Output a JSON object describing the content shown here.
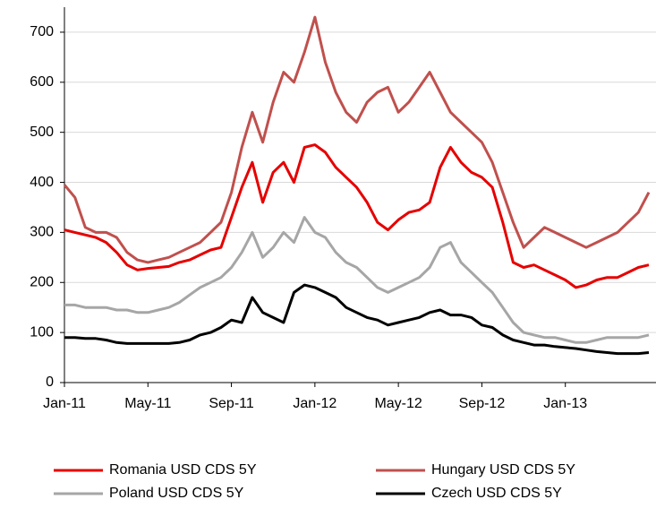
{
  "chart_data": {
    "type": "line",
    "categories": [
      "Jan-11",
      null,
      null,
      null,
      null,
      null,
      null,
      null,
      "May-11",
      null,
      null,
      null,
      null,
      null,
      null,
      null,
      "Sep-11",
      null,
      null,
      null,
      null,
      null,
      null,
      null,
      "Jan-12",
      null,
      null,
      null,
      null,
      null,
      null,
      null,
      "May-12",
      null,
      null,
      null,
      null,
      null,
      null,
      null,
      "Sep-12",
      null,
      null,
      null,
      null,
      null,
      null,
      null,
      "Jan-13",
      null,
      null,
      null,
      null,
      null,
      null,
      null,
      null
    ],
    "series": [
      {
        "name": "Romania USD CDS 5Y",
        "color": "#e60000",
        "values": [
          305,
          300,
          295,
          290,
          280,
          260,
          235,
          225,
          228,
          230,
          232,
          240,
          245,
          255,
          265,
          270,
          330,
          390,
          440,
          360,
          420,
          440,
          400,
          470,
          475,
          460,
          430,
          410,
          390,
          360,
          320,
          305,
          325,
          340,
          345,
          360,
          430,
          470,
          440,
          420,
          410,
          390,
          320,
          240,
          230,
          235,
          225,
          215,
          205,
          190,
          195,
          205,
          210,
          210,
          220,
          230,
          235
        ]
      },
      {
        "name": "Hungary USD CDS 5Y",
        "color": "#c0504d",
        "values": [
          395,
          370,
          310,
          300,
          300,
          290,
          260,
          245,
          240,
          245,
          250,
          260,
          270,
          280,
          300,
          320,
          380,
          470,
          540,
          480,
          560,
          620,
          600,
          660,
          730,
          640,
          580,
          540,
          520,
          560,
          580,
          590,
          540,
          560,
          590,
          620,
          580,
          540,
          520,
          500,
          480,
          440,
          380,
          320,
          270,
          290,
          310,
          300,
          290,
          280,
          270,
          280,
          290,
          300,
          320,
          340,
          380
        ]
      },
      {
        "name": "Poland USD CDS 5Y",
        "color": "#a6a6a6",
        "values": [
          155,
          155,
          150,
          150,
          150,
          145,
          145,
          140,
          140,
          145,
          150,
          160,
          175,
          190,
          200,
          210,
          230,
          260,
          300,
          250,
          270,
          300,
          280,
          330,
          300,
          290,
          260,
          240,
          230,
          210,
          190,
          180,
          190,
          200,
          210,
          230,
          270,
          280,
          240,
          220,
          200,
          180,
          150,
          120,
          100,
          95,
          90,
          90,
          85,
          80,
          80,
          85,
          90,
          90,
          90,
          90,
          95
        ]
      },
      {
        "name": "Czech USD CDS 5Y",
        "color": "#000000",
        "values": [
          90,
          90,
          88,
          88,
          85,
          80,
          78,
          78,
          78,
          78,
          78,
          80,
          85,
          95,
          100,
          110,
          125,
          120,
          170,
          140,
          130,
          120,
          180,
          195,
          190,
          180,
          170,
          150,
          140,
          130,
          125,
          115,
          120,
          125,
          130,
          140,
          145,
          135,
          135,
          130,
          115,
          110,
          95,
          85,
          80,
          75,
          75,
          72,
          70,
          68,
          65,
          62,
          60,
          58,
          58,
          58,
          60
        ]
      }
    ],
    "ylim": [
      0,
      750
    ],
    "yticks": [
      0,
      100,
      200,
      300,
      400,
      500,
      600,
      700
    ],
    "grid": true
  }
}
